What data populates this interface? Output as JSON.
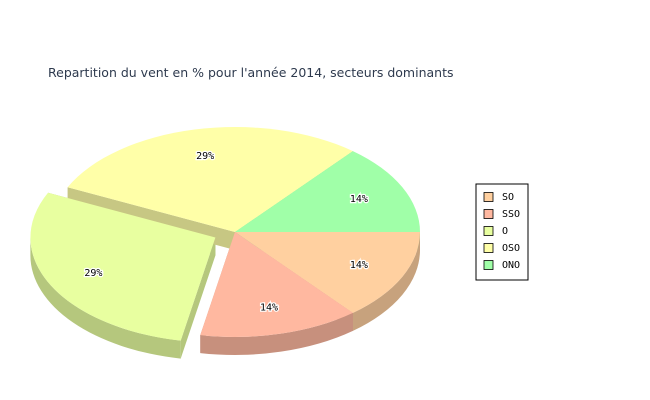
{
  "chart_data": {
    "type": "pie",
    "title": "Repartition du vent en % pour l'année 2014, secteurs dominants",
    "categories": [
      "SO",
      "SSO",
      "O",
      "OSO",
      "ONO"
    ],
    "values": [
      14,
      14,
      29,
      29,
      14
    ],
    "value_labels": [
      "14%",
      "14%",
      "29%",
      "29%",
      "14%"
    ],
    "colors": [
      "#ffd0a0",
      "#ffb8a0",
      "#e8ffa0",
      "#ffffa8",
      "#a0ffa8"
    ],
    "explode": [
      false,
      false,
      true,
      false,
      false
    ],
    "legend": "right"
  }
}
